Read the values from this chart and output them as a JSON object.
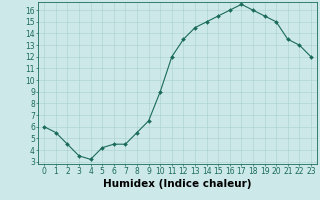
{
  "x": [
    0,
    1,
    2,
    3,
    4,
    5,
    6,
    7,
    8,
    9,
    10,
    11,
    12,
    13,
    14,
    15,
    16,
    17,
    18,
    19,
    20,
    21,
    22,
    23
  ],
  "y": [
    6.0,
    5.5,
    4.5,
    3.5,
    3.2,
    4.2,
    4.5,
    4.5,
    5.5,
    6.5,
    9.0,
    12.0,
    13.5,
    14.5,
    15.0,
    15.5,
    16.0,
    16.5,
    16.0,
    15.5,
    15.0,
    13.5,
    13.0,
    12.0
  ],
  "xlabel": "Humidex (Indice chaleur)",
  "xlim": [
    -0.5,
    23.5
  ],
  "ylim": [
    2.8,
    16.7
  ],
  "yticks": [
    3,
    4,
    5,
    6,
    7,
    8,
    9,
    10,
    11,
    12,
    13,
    14,
    15,
    16
  ],
  "xticks": [
    0,
    1,
    2,
    3,
    4,
    5,
    6,
    7,
    8,
    9,
    10,
    11,
    12,
    13,
    14,
    15,
    16,
    17,
    18,
    19,
    20,
    21,
    22,
    23
  ],
  "line_color": "#1a6b5a",
  "marker_color": "#1a6b5a",
  "bg_color": "#cce8e8",
  "grid_color": "#aacfcf",
  "tick_fontsize": 5.5,
  "label_fontsize": 7.5
}
